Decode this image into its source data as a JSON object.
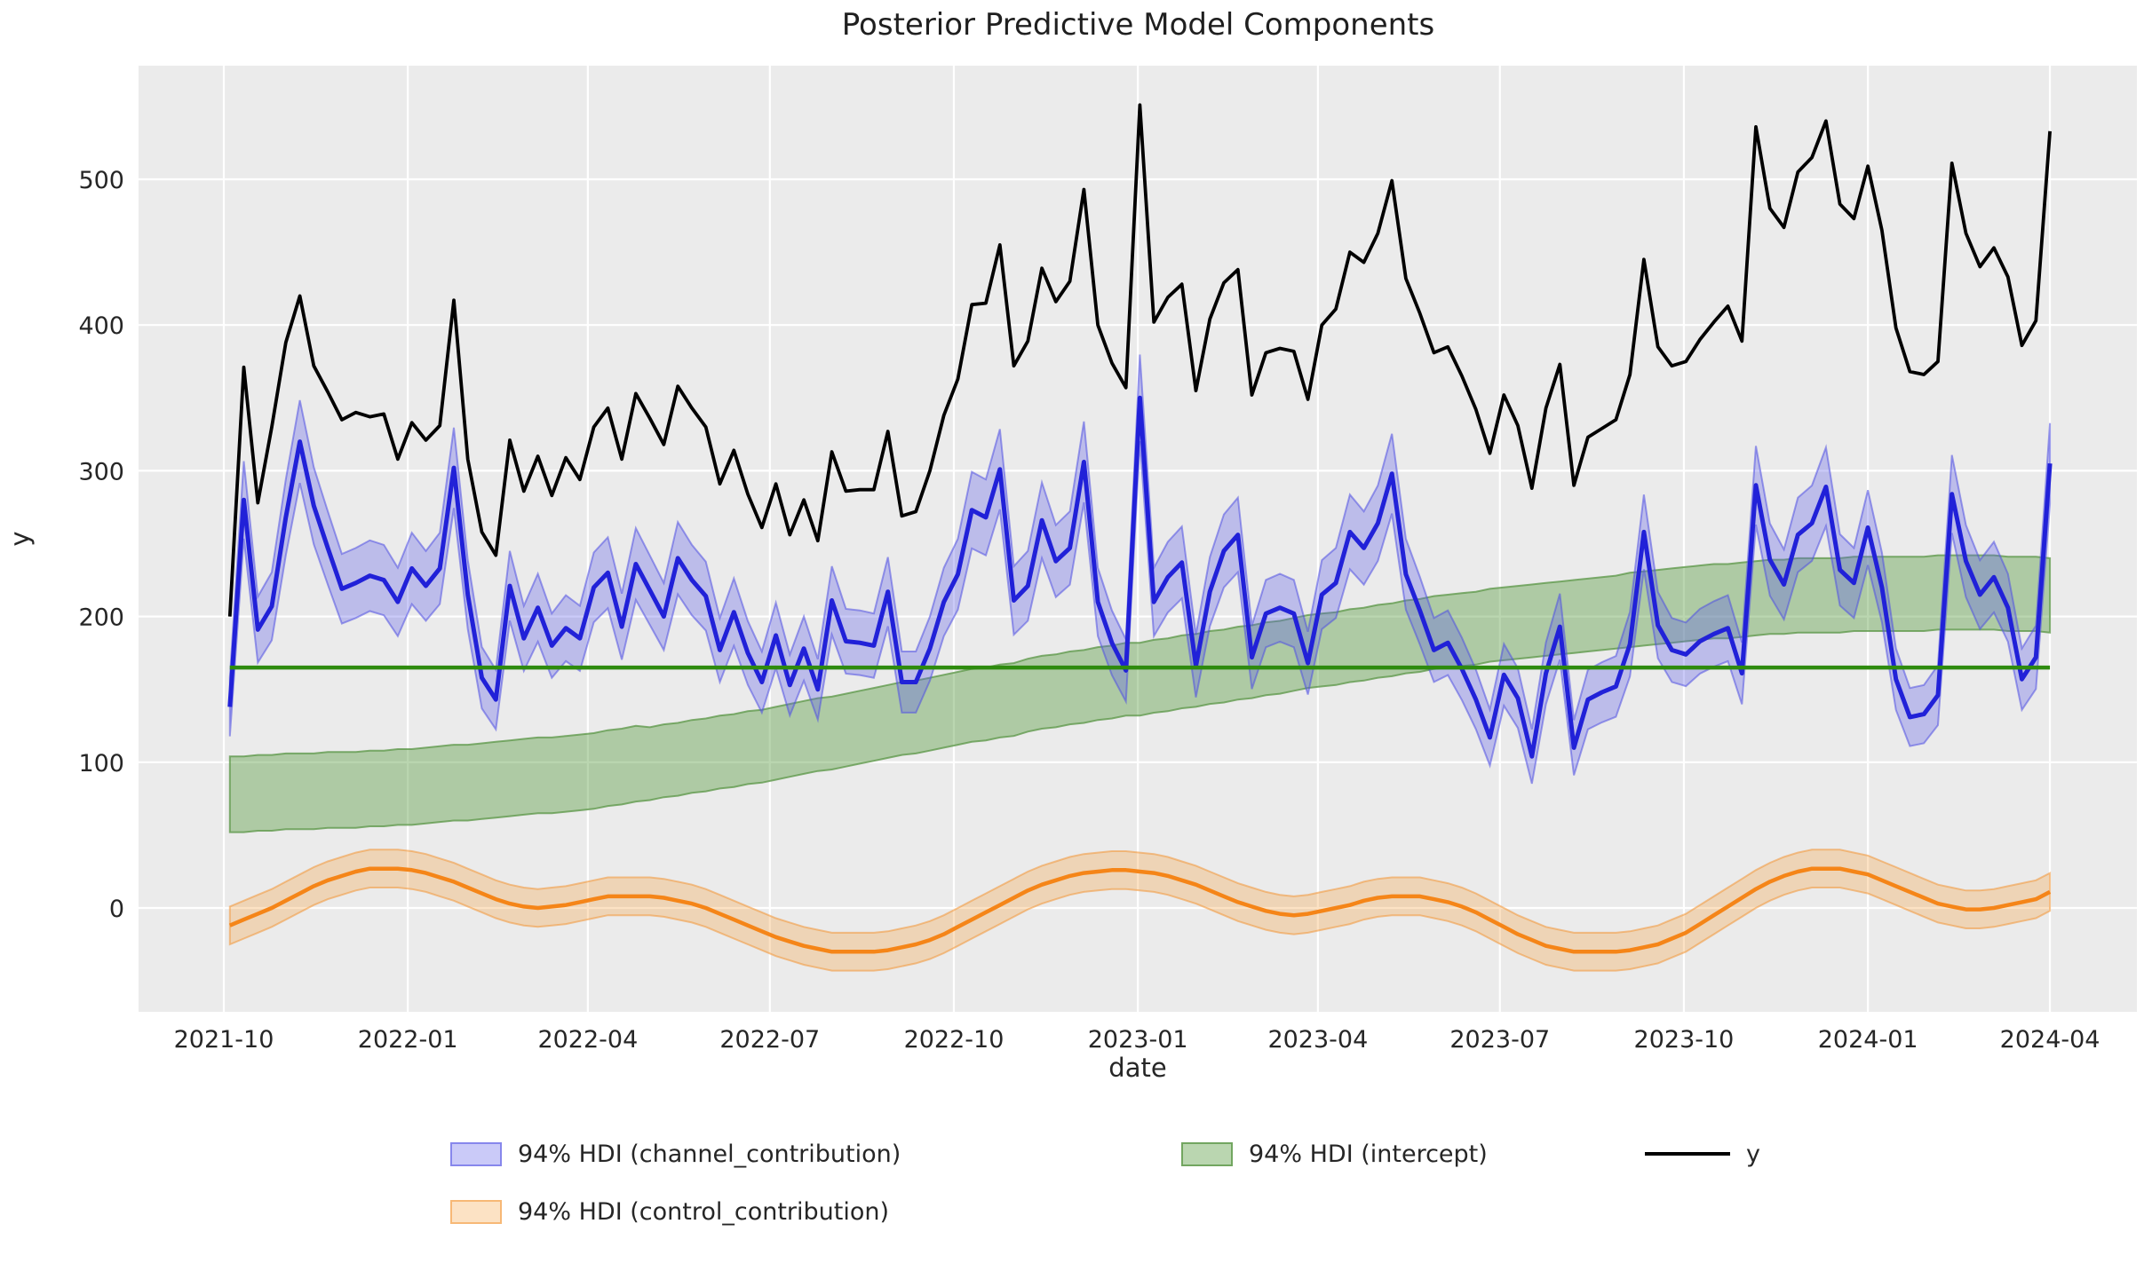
{
  "title": "Posterior Predictive Model Components",
  "axes": {
    "xlabel": "date",
    "ylabel": "y",
    "ytick_values": [
      0,
      100,
      200,
      300,
      400,
      500
    ],
    "xtick_dates": [
      "2021-10-01",
      "2022-01-01",
      "2022-04-01",
      "2022-07-01",
      "2022-10-01",
      "2023-01-01",
      "2023-04-01",
      "2023-07-01",
      "2023-10-01",
      "2024-01-01",
      "2024-04-01"
    ],
    "xtick_labels": [
      "2021-10",
      "2022-01",
      "2022-04",
      "2022-07",
      "2022-10",
      "2023-01",
      "2023-04",
      "2023-07",
      "2023-10",
      "2024-01",
      "2024-04"
    ]
  },
  "legend": {
    "channel_label": "94% HDI (channel_contribution)",
    "control_label": "94% HDI (control_contribution)",
    "intercept_label": "94% HDI (intercept)",
    "y_label": "y"
  },
  "colors": {
    "background_axes": "#ebebeb",
    "grid": "#ffffff",
    "y_line": "#000000",
    "channel_line": "#2121d8",
    "channel_fill": "rgba(95,95,235,0.33)",
    "channel_edge": "rgba(80,80,225,0.55)",
    "intercept_line": "#2e8b0e",
    "intercept_fill": "rgba(82,152,58,0.40)",
    "intercept_edge": "rgba(90,150,70,0.75)",
    "control_line": "#f58518",
    "control_fill": "rgba(246,160,60,0.30)",
    "control_edge": "rgba(243,150,55,0.55)",
    "tick_text": "#262626"
  },
  "chart_data": {
    "type": "line",
    "title": "Posterior Predictive Model Components",
    "xlabel": "date",
    "ylabel": "y",
    "x_start": "2021-10-04",
    "x_freq_days": 7,
    "ylim": [
      -71,
      578
    ],
    "grid": true,
    "legend_position": "bottom",
    "series": [
      {
        "name": "y",
        "values": [
          200,
          371,
          278,
          330,
          388,
          420,
          372,
          354,
          335,
          340,
          337,
          339,
          308,
          333,
          321,
          331,
          417,
          308,
          258,
          242,
          321,
          286,
          310,
          283,
          309,
          294,
          330,
          343,
          308,
          353,
          336,
          318,
          358,
          343,
          330,
          291,
          314,
          284,
          261,
          291,
          256,
          280,
          252,
          313,
          286,
          287,
          287,
          327,
          269,
          272,
          300,
          338,
          363,
          414,
          415,
          455,
          372,
          389,
          439,
          416,
          430,
          493,
          400,
          374,
          357,
          551,
          402,
          419,
          428,
          355,
          404,
          429,
          438,
          352,
          381,
          384,
          382,
          349,
          400,
          411,
          450,
          443,
          463,
          499,
          432,
          408,
          381,
          385,
          365,
          342,
          312,
          352,
          331,
          288,
          343,
          373,
          290,
          323,
          329,
          335,
          366,
          445,
          385,
          372,
          375,
          390,
          402,
          413,
          389,
          536,
          480,
          467,
          505,
          515,
          540,
          483,
          473,
          509,
          465,
          398,
          368,
          366,
          375,
          511,
          463,
          440,
          453,
          433,
          386,
          403,
          533
        ]
      },
      {
        "name": "channel_contribution_mean",
        "values": [
          138,
          280,
          191,
          207,
          268,
          320,
          276,
          247,
          219,
          223,
          228,
          225,
          210,
          233,
          221,
          233,
          302,
          215,
          158,
          143,
          221,
          185,
          206,
          180,
          192,
          185,
          220,
          230,
          193,
          236,
          218,
          200,
          240,
          225,
          214,
          177,
          203,
          175,
          155,
          187,
          153,
          178,
          150,
          211,
          183,
          182,
          180,
          217,
          155,
          155,
          178,
          210,
          229,
          273,
          268,
          301,
          211,
          221,
          266,
          238,
          247,
          306,
          210,
          182,
          163,
          350,
          210,
          227,
          237,
          166,
          217,
          245,
          256,
          172,
          202,
          206,
          202,
          168,
          215,
          223,
          258,
          247,
          264,
          298,
          229,
          204,
          177,
          182,
          164,
          143,
          117,
          160,
          144,
          104,
          161,
          193,
          110,
          143,
          148,
          152,
          181,
          258,
          194,
          177,
          174,
          183,
          188,
          192,
          161,
          290,
          239,
          222,
          256,
          264,
          289,
          232,
          223,
          261,
          220,
          157,
          131,
          133,
          146,
          284,
          238,
          215,
          227,
          206,
          157,
          172,
          305
        ],
        "band_halfwidth_base": 14,
        "band_halfwidth_scale": 0.045
      },
      {
        "name": "intercept_hdi_lower",
        "values": [
          52,
          52,
          53,
          53,
          54,
          54,
          54,
          55,
          55,
          55,
          56,
          56,
          57,
          57,
          58,
          59,
          60,
          60,
          61,
          62,
          63,
          64,
          65,
          65,
          66,
          67,
          68,
          70,
          71,
          73,
          74,
          76,
          77,
          79,
          80,
          82,
          83,
          85,
          86,
          88,
          90,
          92,
          94,
          95,
          97,
          99,
          101,
          103,
          105,
          106,
          108,
          110,
          112,
          114,
          115,
          117,
          118,
          121,
          123,
          124,
          126,
          127,
          129,
          130,
          132,
          132,
          134,
          135,
          137,
          138,
          140,
          141,
          143,
          144,
          146,
          147,
          149,
          151,
          152,
          153,
          155,
          156,
          158,
          159,
          161,
          162,
          164,
          165,
          166,
          167,
          169,
          170,
          171,
          172,
          173,
          174,
          175,
          176,
          177,
          178,
          179,
          180,
          181,
          182,
          183,
          184,
          185,
          185,
          186,
          187,
          188,
          188,
          189,
          189,
          189,
          189,
          190,
          190,
          190,
          190,
          190,
          190,
          191,
          191,
          191,
          191,
          191,
          190,
          190,
          190,
          189
        ]
      },
      {
        "name": "intercept_hdi_upper",
        "values": [
          104,
          104,
          105,
          105,
          106,
          106,
          106,
          107,
          107,
          107,
          108,
          108,
          109,
          109,
          110,
          111,
          112,
          112,
          113,
          114,
          115,
          116,
          117,
          117,
          118,
          119,
          120,
          122,
          123,
          125,
          124,
          126,
          127,
          129,
          130,
          132,
          133,
          135,
          136,
          138,
          140,
          142,
          144,
          145,
          147,
          149,
          151,
          153,
          155,
          156,
          158,
          160,
          162,
          164,
          165,
          167,
          168,
          171,
          173,
          174,
          176,
          177,
          179,
          180,
          182,
          182,
          184,
          185,
          187,
          188,
          190,
          191,
          193,
          194,
          196,
          197,
          199,
          201,
          202,
          203,
          205,
          206,
          208,
          209,
          211,
          212,
          214,
          215,
          216,
          217,
          219,
          220,
          221,
          222,
          223,
          224,
          225,
          226,
          227,
          228,
          230,
          231,
          232,
          233,
          234,
          235,
          236,
          236,
          237,
          238,
          239,
          239,
          240,
          240,
          240,
          240,
          241,
          241,
          241,
          241,
          241,
          241,
          242,
          242,
          242,
          242,
          242,
          241,
          241,
          241,
          240
        ]
      },
      {
        "name": "intercept_mean_line",
        "value": 165
      },
      {
        "name": "control_contribution_mean",
        "values": [
          -12,
          -8,
          -4,
          0,
          5,
          10,
          15,
          19,
          22,
          25,
          27,
          27,
          27,
          26,
          24,
          21,
          18,
          14,
          10,
          6,
          3,
          1,
          0,
          1,
          2,
          4,
          6,
          8,
          8,
          8,
          8,
          7,
          5,
          3,
          0,
          -4,
          -8,
          -12,
          -16,
          -20,
          -23,
          -26,
          -28,
          -30,
          -30,
          -30,
          -30,
          -29,
          -27,
          -25,
          -22,
          -18,
          -13,
          -8,
          -3,
          2,
          7,
          12,
          16,
          19,
          22,
          24,
          25,
          26,
          26,
          25,
          24,
          22,
          19,
          16,
          12,
          8,
          4,
          1,
          -2,
          -4,
          -5,
          -4,
          -2,
          0,
          2,
          5,
          7,
          8,
          8,
          8,
          6,
          4,
          1,
          -3,
          -8,
          -13,
          -18,
          -22,
          -26,
          -28,
          -30,
          -30,
          -30,
          -30,
          -29,
          -27,
          -25,
          -21,
          -17,
          -11,
          -5,
          1,
          7,
          13,
          18,
          22,
          25,
          27,
          27,
          27,
          25,
          23,
          19,
          15,
          11,
          7,
          3,
          1,
          -1,
          -1,
          0,
          2,
          4,
          6,
          11
        ],
        "band_halfwidth": 13
      }
    ]
  }
}
